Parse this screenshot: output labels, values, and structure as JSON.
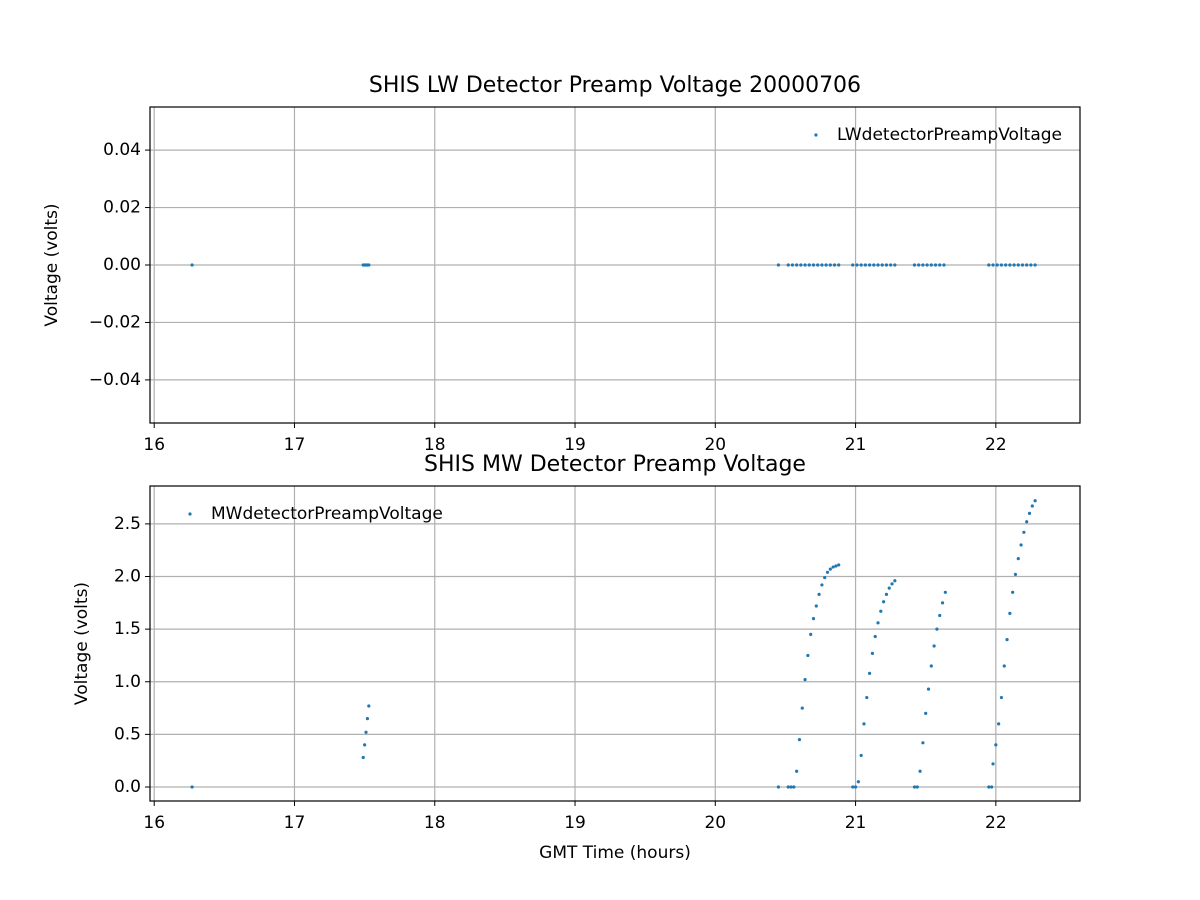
{
  "chart_data": [
    {
      "type": "scatter",
      "title": "SHIS LW Detector Preamp Voltage 20000706",
      "y_label": "Voltage (volts)",
      "xlim": [
        15.97,
        22.6
      ],
      "xticks": [
        16,
        17,
        18,
        19,
        20,
        21,
        22
      ],
      "ylim": [
        -0.055,
        0.055
      ],
      "yticks": [
        {
          "value": -0.04,
          "label": "−0.04"
        },
        {
          "value": -0.02,
          "label": "−0.02"
        },
        {
          "value": 0,
          "label": "0.00"
        },
        0.02,
        0.04
      ],
      "grid": true,
      "legend": "upper right",
      "series": [
        {
          "name": "LWdetectorPreampVoltage",
          "color": "#1f77b4",
          "x": [
            16.27,
            17.49,
            17.5,
            17.51,
            17.52,
            17.53,
            20.45,
            20.52,
            20.55,
            20.58,
            20.61,
            20.64,
            20.67,
            20.7,
            20.73,
            20.76,
            20.79,
            20.82,
            20.85,
            20.88,
            20.98,
            21.01,
            21.04,
            21.07,
            21.1,
            21.13,
            21.16,
            21.19,
            21.22,
            21.25,
            21.28,
            21.42,
            21.45,
            21.48,
            21.51,
            21.54,
            21.57,
            21.6,
            21.63,
            21.95,
            21.98,
            22.01,
            22.04,
            22.07,
            22.1,
            22.13,
            22.16,
            22.19,
            22.22,
            22.25,
            22.28
          ],
          "values": [
            0,
            0,
            0,
            0,
            0,
            0,
            0,
            0,
            0,
            0,
            0,
            0,
            0,
            0,
            0,
            0,
            0,
            0,
            0,
            0,
            0,
            0,
            0,
            0,
            0,
            0,
            0,
            0,
            0,
            0,
            0,
            0,
            0,
            0,
            0,
            0,
            0,
            0,
            0,
            0,
            0,
            0,
            0,
            0,
            0,
            0,
            0,
            0,
            0,
            0,
            0
          ]
        }
      ]
    },
    {
      "type": "scatter",
      "title": "SHIS MW Detector Preamp Voltage",
      "x_label": "GMT Time (hours)",
      "y_label": "Voltage (volts)",
      "xlim": [
        15.97,
        22.6
      ],
      "xticks": [
        16,
        17,
        18,
        19,
        20,
        21,
        22
      ],
      "ylim": [
        -0.133,
        2.86
      ],
      "yticks": [
        {
          "value": 0,
          "label": "0.0"
        },
        0.5,
        {
          "value": 1,
          "label": "1.0"
        },
        1.5,
        {
          "value": 2,
          "label": "2.0"
        },
        2.5
      ],
      "grid": true,
      "legend": "upper left",
      "series": [
        {
          "name": "MWdetectorPreampVoltage",
          "color": "#1f77b4",
          "x": [
            16.27,
            17.49,
            17.5,
            17.51,
            17.52,
            17.53,
            20.45,
            20.52,
            20.54,
            20.56,
            20.58,
            20.6,
            20.62,
            20.64,
            20.66,
            20.68,
            20.7,
            20.72,
            20.74,
            20.76,
            20.78,
            20.8,
            20.82,
            20.84,
            20.86,
            20.88,
            20.98,
            21.0,
            21.02,
            21.04,
            21.06,
            21.08,
            21.1,
            21.12,
            21.14,
            21.16,
            21.18,
            21.2,
            21.22,
            21.24,
            21.26,
            21.28,
            21.42,
            21.44,
            21.46,
            21.48,
            21.5,
            21.52,
            21.54,
            21.56,
            21.58,
            21.6,
            21.62,
            21.64,
            21.95,
            21.97,
            21.98,
            22.0,
            22.02,
            22.04,
            22.06,
            22.08,
            22.1,
            22.12,
            22.14,
            22.16,
            22.18,
            22.2,
            22.22,
            22.24,
            22.26,
            22.28
          ],
          "values": [
            0,
            0.28,
            0.4,
            0.52,
            0.65,
            0.77,
            0,
            0,
            0,
            0,
            0.15,
            0.45,
            0.75,
            1.02,
            1.25,
            1.45,
            1.6,
            1.72,
            1.83,
            1.92,
            1.99,
            2.04,
            2.07,
            2.09,
            2.1,
            2.11,
            0,
            0,
            0.05,
            0.3,
            0.6,
            0.85,
            1.08,
            1.27,
            1.43,
            1.56,
            1.67,
            1.76,
            1.83,
            1.89,
            1.93,
            1.96,
            0,
            0,
            0.15,
            0.42,
            0.7,
            0.93,
            1.15,
            1.34,
            1.5,
            1.63,
            1.75,
            1.85,
            0,
            0,
            0.22,
            0.4,
            0.6,
            0.85,
            1.15,
            1.4,
            1.65,
            1.85,
            2.02,
            2.17,
            2.3,
            2.42,
            2.52,
            2.6,
            2.67,
            2.72
          ]
        }
      ]
    }
  ]
}
